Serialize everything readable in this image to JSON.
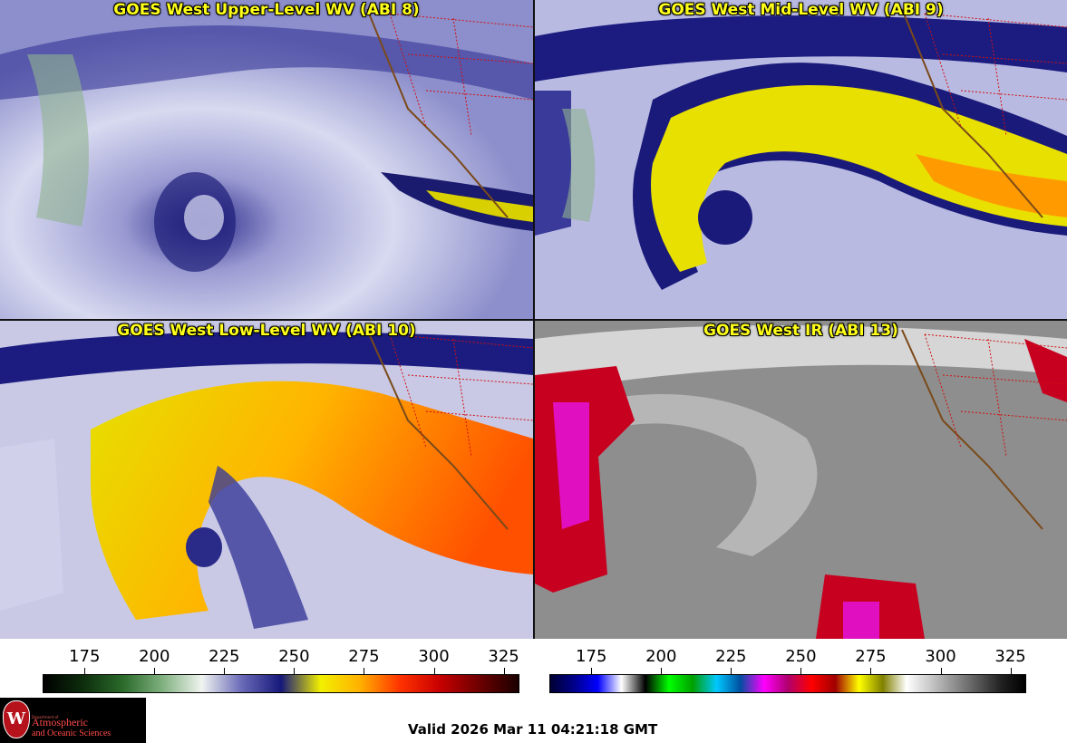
{
  "panels": [
    {
      "title": "GOES West Upper-Level WV (ABI 8)",
      "style": "upper"
    },
    {
      "title": "GOES West Mid-Level WV (ABI 9)",
      "style": "mid"
    },
    {
      "title": "GOES West Low-Level WV (ABI 10)",
      "style": "low"
    },
    {
      "title": "GOES West IR (ABI 13)",
      "style": "ir"
    }
  ],
  "colorbar_left": {
    "ticks": [
      "175",
      "200",
      "225",
      "250",
      "275",
      "300",
      "325"
    ],
    "colors": [
      "#000000",
      "#0d2d0d",
      "#2a6a2a",
      "#7fb07f",
      "#f0f4f0",
      "#6a6ab8",
      "#16187a",
      "#f2f000",
      "#ffb000",
      "#ff3300",
      "#c80000",
      "#6e0000",
      "#1a0000"
    ]
  },
  "colorbar_right": {
    "ticks": [
      "175",
      "200",
      "225",
      "250",
      "275",
      "300",
      "325"
    ],
    "colors": [
      "#000033",
      "#00008a",
      "#0000ff",
      "#ffffff",
      "#000000",
      "#00ff00",
      "#00a000",
      "#00c8ff",
      "#0050a0",
      "#ff00ff",
      "#b0006e",
      "#ff0000",
      "#a00000",
      "#ffff00",
      "#808000",
      "#ffffff",
      "#c8c8c8",
      "#909090",
      "#585858",
      "#202020",
      "#000000"
    ]
  },
  "logo": {
    "small": "Department of",
    "line1": "Atmospheric",
    "line2": "and Oceanic Sciences",
    "seal_letter": "W"
  },
  "valid_time": "Valid 2026 Mar 11 04:21:18 GMT"
}
